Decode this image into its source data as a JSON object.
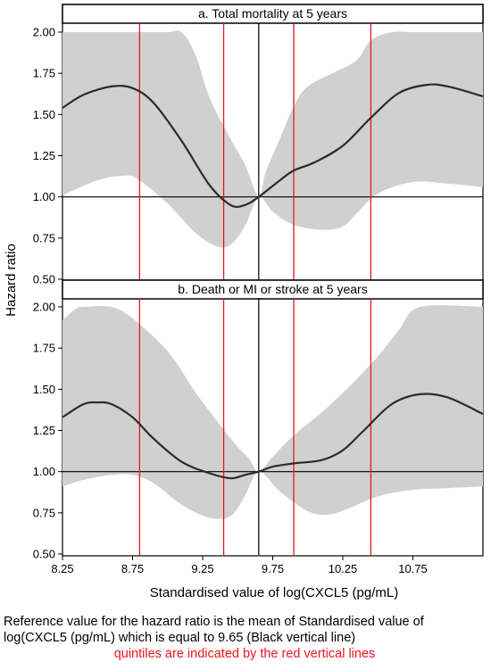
{
  "chart_data": [
    {
      "type": "line",
      "title": "a. Total mortality at 5 years",
      "ylim": [
        0.5,
        2.0
      ],
      "yticks": [
        "0.50",
        "0.75",
        "1.00",
        "1.25",
        "1.50",
        "1.75",
        "2.00"
      ],
      "xlim": [
        8.25,
        11.25
      ],
      "reference_x": 9.65,
      "quintile_lines": [
        8.8,
        9.4,
        9.9,
        10.45
      ],
      "series": [
        {
          "x": [
            8.25,
            8.4,
            8.6,
            8.75,
            8.9,
            9.1,
            9.3,
            9.45,
            9.55,
            9.65,
            9.8,
            9.9,
            10.05,
            10.25,
            10.45,
            10.65,
            10.85,
            11.0,
            11.25
          ],
          "values": [
            1.54,
            1.62,
            1.67,
            1.66,
            1.57,
            1.34,
            1.07,
            0.95,
            0.95,
            1.0,
            1.1,
            1.16,
            1.21,
            1.31,
            1.48,
            1.63,
            1.68,
            1.67,
            1.61
          ]
        }
      ],
      "ci_upper": {
        "x": [
          8.25,
          8.5,
          8.8,
          9.0,
          9.1,
          9.2,
          9.3,
          9.45,
          9.55,
          9.65,
          9.7,
          9.8,
          9.9,
          10.0,
          10.2,
          10.35,
          10.45,
          10.6,
          10.75,
          10.8,
          11.25
        ],
        "values": [
          2.0,
          2.0,
          2.0,
          2.0,
          2.0,
          1.86,
          1.6,
          1.35,
          1.2,
          1.0,
          1.15,
          1.35,
          1.55,
          1.67,
          1.76,
          1.83,
          1.95,
          2.0,
          2.0,
          2.0,
          2.0
        ]
      },
      "ci_lower": {
        "x": [
          8.25,
          8.5,
          8.7,
          8.8,
          9.0,
          9.2,
          9.35,
          9.45,
          9.55,
          9.65,
          9.75,
          9.9,
          10.1,
          10.25,
          10.35,
          10.5,
          10.75,
          11.0,
          11.25
        ],
        "values": [
          1.01,
          1.1,
          1.13,
          1.1,
          0.96,
          0.78,
          0.7,
          0.71,
          0.82,
          1.0,
          0.91,
          0.83,
          0.8,
          0.82,
          0.9,
          1.02,
          1.09,
          1.08,
          1.06
        ]
      }
    },
    {
      "type": "line",
      "title": "b. Death or MI or stroke at 5 years",
      "ylim": [
        0.5,
        2.0
      ],
      "yticks": [
        "0.50",
        "0.75",
        "1.00",
        "1.25",
        "1.50",
        "1.75",
        "2.00"
      ],
      "xlim": [
        8.25,
        11.25
      ],
      "reference_x": 9.65,
      "quintile_lines": [
        8.8,
        9.4,
        9.9,
        10.45
      ],
      "xticks": [
        "8.25",
        "8.75",
        "9.25",
        "9.75",
        "10.25",
        "10.75"
      ],
      "series": [
        {
          "x": [
            8.25,
            8.4,
            8.5,
            8.6,
            8.75,
            8.9,
            9.1,
            9.3,
            9.45,
            9.55,
            9.65,
            9.75,
            9.9,
            10.1,
            10.25,
            10.4,
            10.6,
            10.8,
            11.0,
            11.25
          ],
          "values": [
            1.33,
            1.41,
            1.42,
            1.41,
            1.33,
            1.2,
            1.06,
            0.99,
            0.96,
            0.98,
            1.0,
            1.03,
            1.05,
            1.07,
            1.13,
            1.25,
            1.41,
            1.47,
            1.45,
            1.35
          ]
        }
      ],
      "ci_upper": {
        "x": [
          8.25,
          8.35,
          8.4,
          8.6,
          8.75,
          9.0,
          9.2,
          9.35,
          9.5,
          9.58,
          9.65,
          9.75,
          9.9,
          10.1,
          10.3,
          10.5,
          10.65,
          10.8,
          11.25
        ],
        "values": [
          1.92,
          1.99,
          2.0,
          2.0,
          1.93,
          1.73,
          1.48,
          1.31,
          1.15,
          1.08,
          1.0,
          1.09,
          1.22,
          1.36,
          1.52,
          1.7,
          1.86,
          2.0,
          2.0
        ]
      },
      "ci_lower": {
        "x": [
          8.25,
          8.4,
          8.6,
          8.75,
          8.9,
          9.1,
          9.3,
          9.45,
          9.55,
          9.65,
          9.8,
          10.0,
          10.15,
          10.3,
          10.5,
          10.75,
          11.0,
          11.25
        ],
        "values": [
          0.91,
          0.95,
          0.98,
          0.98,
          0.93,
          0.8,
          0.72,
          0.73,
          0.85,
          1.0,
          0.88,
          0.76,
          0.74,
          0.78,
          0.85,
          0.89,
          0.9,
          0.91
        ]
      }
    }
  ],
  "y_axis_label": "Hazard ratio",
  "x_axis_label": "Standardised value of log(CXCL5 (pg/mL)",
  "footnote": "Reference value for the hazard ratio is the mean of Standardised value of log(CXCL5 (pg/mL) which is equal to 9.65 (Black vertical line)",
  "quintile_note": "quintiles are indicated by the red vertical lines",
  "colors": {
    "curve": "#2b2b2b",
    "band": "#d0d0d0",
    "quintile": "#e8161b",
    "axis": "#000000"
  }
}
